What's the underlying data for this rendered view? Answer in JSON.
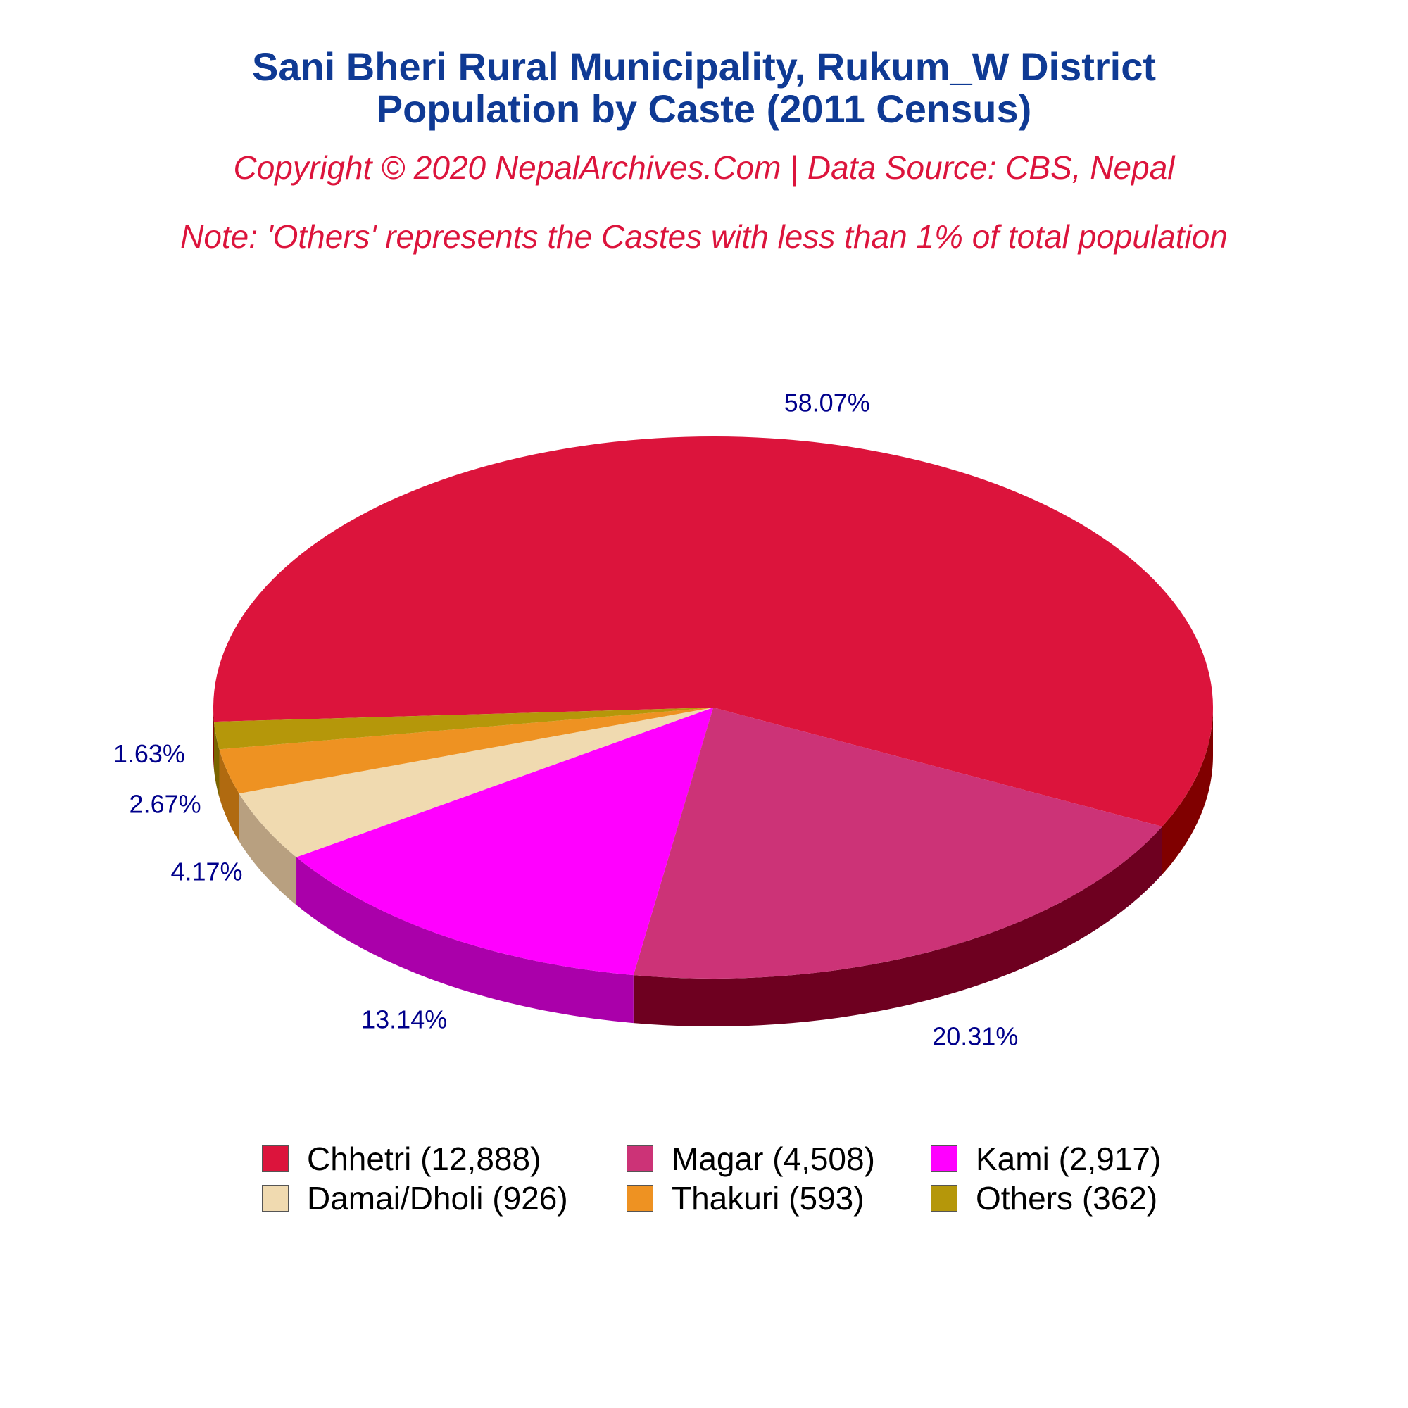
{
  "header": {
    "title_line1": "Sani Bheri Rural Municipality, Rukum_W District",
    "title_line2": "Population by Caste (2011 Census)",
    "copyright": "Copyright © 2020 NepalArchives.Com | Data Source: CBS, Nepal",
    "note": "Note: 'Others' represents the Castes with less than 1% of total population"
  },
  "chart_data": {
    "type": "pie",
    "style": "3d",
    "categories": [
      "Chhetri",
      "Magar",
      "Kami",
      "Damai/Dholi",
      "Thakuri",
      "Others"
    ],
    "values": [
      12888,
      4508,
      2917,
      926,
      593,
      362
    ],
    "percent_labels": [
      "58.07%",
      "20.31%",
      "13.14%",
      "4.17%",
      "2.67%",
      "1.63%"
    ],
    "legend_labels": [
      "Chhetri (12,888)",
      "Magar (4,508)",
      "Kami (2,917)",
      "Damai/Dholi (926)",
      "Thakuri (593)",
      "Others (362)"
    ],
    "colors": [
      "#dc143c",
      "#cc3377",
      "#ff00ff",
      "#f0dab0",
      "#ee9222",
      "#b5970a"
    ],
    "side_colors": [
      "#800000",
      "#6e0020",
      "#aa00aa",
      "#b8a080",
      "#b06a10",
      "#7a6400"
    ],
    "legend_placement": "bottom"
  }
}
